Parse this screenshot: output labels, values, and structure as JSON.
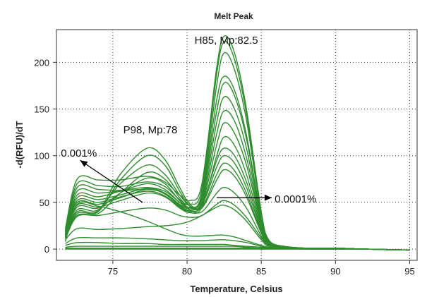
{
  "chart_data": {
    "type": "line",
    "title": "Melt Peak",
    "xlabel": "Temperature, Celsius",
    "ylabel": "-d(RFU)/dT",
    "xlim": [
      71.2,
      95.5
    ],
    "ylim": [
      -12,
      235
    ],
    "x_ticks": [
      75,
      80,
      85,
      90,
      95
    ],
    "y_ticks": [
      0,
      50,
      100,
      150,
      200
    ],
    "grid": "dotted",
    "line_color": "#2e8b2e",
    "annotations": [
      {
        "text": "H85, Mp:82.5",
        "x": 80.5,
        "y": 220
      },
      {
        "text": "P98, Mp:78",
        "x": 75.7,
        "y": 124
      },
      {
        "text": "0.001%",
        "x": 71.5,
        "y": 99
      },
      {
        "text": "0.0001%",
        "x": 85.9,
        "y": 50
      }
    ],
    "arrows": [
      {
        "from": [
          77.0,
          50.0
        ],
        "to": [
          72.8,
          95.0
        ]
      },
      {
        "from": [
          82.0,
          55.0
        ],
        "to": [
          85.7,
          55.0
        ]
      }
    ],
    "series": [
      {
        "x": [
          71.8,
          72.6,
          74.0,
          75.5,
          77.3,
          78.5,
          79.5,
          80.2,
          81.0,
          82.0,
          82.5,
          83.2,
          84.0,
          85.0,
          85.5,
          86.5,
          88.0,
          90.0,
          92.0,
          95.0
        ],
        "y": [
          22,
          75,
          74,
          74,
          78,
          72,
          58,
          52,
          70,
          195,
          228,
          210,
          150,
          40,
          10,
          3,
          1,
          1,
          0,
          -1
        ]
      },
      {
        "x": [
          71.8,
          72.6,
          74.0,
          75.5,
          77.3,
          78.5,
          79.5,
          80.2,
          81.0,
          82.0,
          82.5,
          83.2,
          84.0,
          85.0,
          85.5,
          86.5,
          88.0,
          90.0,
          92.0,
          95.0
        ],
        "y": [
          20,
          70,
          68,
          67,
          72,
          67,
          53,
          48,
          65,
          188,
          222,
          203,
          145,
          38,
          9,
          3,
          1,
          1,
          0,
          -1
        ]
      },
      {
        "x": [
          71.8,
          72.6,
          74.0,
          75.5,
          77.3,
          78.5,
          79.5,
          80.2,
          81.0,
          82.0,
          82.5,
          83.2,
          84.0,
          85.0,
          85.5,
          86.5,
          88.0,
          90.0,
          92.0,
          95.0
        ],
        "y": [
          19,
          66,
          64,
          63,
          66,
          62,
          50,
          45,
          60,
          176,
          210,
          192,
          138,
          36,
          8,
          3,
          1,
          1,
          0,
          -1
        ]
      },
      {
        "x": [
          71.8,
          72.6,
          74.0,
          75.5,
          77.3,
          78.5,
          79.5,
          80.2,
          81.0,
          82.0,
          82.5,
          83.2,
          84.0,
          85.0,
          85.5,
          86.5,
          88.0,
          90.0,
          92.0,
          95.0
        ],
        "y": [
          18,
          62,
          60,
          62,
          64,
          60,
          48,
          44,
          58,
          160,
          185,
          170,
          122,
          33,
          8,
          3,
          1,
          1,
          0,
          -1
        ]
      },
      {
        "x": [
          71.8,
          72.6,
          74.0,
          75.5,
          77.3,
          78.5,
          79.5,
          80.2,
          81.0,
          82.0,
          82.5,
          83.2,
          84.0,
          85.0,
          85.5,
          86.5,
          88.0,
          90.0,
          92.0,
          95.0
        ],
        "y": [
          17,
          58,
          56,
          62,
          70,
          64,
          50,
          44,
          56,
          148,
          178,
          164,
          118,
          32,
          8,
          3,
          1,
          1,
          0,
          -1
        ]
      },
      {
        "x": [
          71.8,
          72.6,
          74.0,
          75.5,
          77.3,
          78.5,
          79.5,
          80.2,
          81.0,
          82.0,
          82.5,
          83.2,
          84.0,
          85.0,
          85.5,
          86.5,
          88.0,
          90.0,
          92.0,
          95.0
        ],
        "y": [
          16,
          55,
          53,
          58,
          65,
          60,
          47,
          42,
          53,
          136,
          163,
          150,
          108,
          30,
          7,
          3,
          1,
          1,
          0,
          -1
        ]
      },
      {
        "x": [
          71.8,
          72.6,
          74.0,
          75.5,
          77.3,
          78.5,
          79.5,
          80.2,
          81.0,
          82.0,
          82.5,
          83.2,
          84.0,
          85.0,
          85.5,
          86.5,
          88.0,
          90.0,
          92.0,
          95.0
        ],
        "y": [
          15,
          52,
          50,
          56,
          62,
          57,
          45,
          40,
          50,
          124,
          148,
          137,
          98,
          28,
          7,
          2,
          1,
          1,
          0,
          -1
        ]
      },
      {
        "x": [
          71.8,
          72.6,
          74.0,
          75.5,
          77.3,
          78.5,
          79.5,
          80.2,
          81.0,
          82.0,
          82.5,
          83.2,
          84.0,
          85.0,
          85.5,
          86.5,
          88.0,
          90.0,
          92.0,
          95.0
        ],
        "y": [
          15,
          50,
          48,
          55,
          64,
          59,
          46,
          41,
          48,
          112,
          135,
          124,
          90,
          26,
          6,
          2,
          1,
          1,
          0,
          -1
        ]
      },
      {
        "x": [
          71.8,
          72.6,
          74.0,
          75.5,
          77.3,
          78.5,
          79.5,
          80.2,
          81.0,
          82.0,
          82.5,
          83.2,
          84.0,
          85.0,
          85.5,
          86.5,
          88.0,
          90.0,
          92.0,
          95.0
        ],
        "y": [
          14,
          47,
          45,
          52,
          60,
          56,
          44,
          39,
          45,
          100,
          120,
          111,
          80,
          24,
          6,
          2,
          1,
          1,
          0,
          -1
        ]
      },
      {
        "x": [
          71.8,
          72.6,
          74.0,
          75.5,
          77.3,
          78.5,
          79.5,
          80.2,
          81.0,
          82.0,
          82.5,
          83.2,
          84.0,
          85.0,
          85.5,
          86.5,
          88.0,
          90.0,
          92.0,
          95.0
        ],
        "y": [
          14,
          45,
          44,
          60,
          76,
          70,
          52,
          44,
          48,
          95,
          108,
          100,
          72,
          22,
          6,
          2,
          1,
          1,
          0,
          -1
        ]
      },
      {
        "x": [
          71.8,
          72.6,
          74.0,
          75.5,
          77.3,
          78.5,
          79.5,
          80.2,
          81.0,
          82.0,
          82.5,
          83.2,
          84.0,
          85.0,
          85.5,
          86.5,
          88.0,
          90.0,
          92.0,
          95.0
        ],
        "y": [
          13,
          42,
          42,
          70,
          90,
          80,
          58,
          46,
          47,
          88,
          100,
          92,
          66,
          20,
          5,
          2,
          1,
          1,
          0,
          -1
        ]
      },
      {
        "x": [
          71.8,
          72.6,
          74.0,
          75.5,
          77.3,
          78.5,
          79.5,
          80.2,
          81.0,
          82.0,
          82.5,
          83.2,
          84.0,
          85.0,
          85.5,
          86.5,
          88.0,
          90.0,
          92.0,
          95.0
        ],
        "y": [
          13,
          40,
          41,
          80,
          108,
          96,
          66,
          48,
          45,
          80,
          92,
          84,
          60,
          18,
          5,
          2,
          1,
          1,
          0,
          -1
        ]
      },
      {
        "x": [
          71.8,
          72.6,
          74.0,
          75.5,
          77.3,
          78.5,
          79.5,
          80.2,
          81.0,
          82.0,
          82.5,
          83.2,
          84.0,
          85.0,
          85.5,
          86.5,
          88.0,
          90.0,
          92.0,
          95.0
        ],
        "y": [
          12,
          38,
          40,
          74,
          100,
          90,
          62,
          46,
          44,
          74,
          85,
          78,
          56,
          17,
          5,
          2,
          1,
          1,
          0,
          -1
        ]
      },
      {
        "x": [
          71.8,
          72.6,
          74.0,
          75.5,
          77.3,
          78.5,
          79.5,
          80.2,
          81.0,
          82.0,
          82.5,
          83.2,
          84.0,
          85.0,
          85.5,
          86.5,
          88.0,
          90.0,
          92.0,
          95.0
        ],
        "y": [
          12,
          36,
          38,
          60,
          82,
          75,
          55,
          42,
          40,
          60,
          66,
          60,
          44,
          14,
          4,
          2,
          1,
          1,
          0,
          -1
        ]
      },
      {
        "x": [
          71.8,
          72.6,
          74.0,
          75.5,
          77.3,
          78.5,
          79.5,
          80.2,
          81.0,
          82.0,
          82.5,
          83.2,
          84.0,
          85.0,
          85.5,
          86.5,
          88.0,
          90.0,
          92.0,
          95.0
        ],
        "y": [
          11,
          35,
          36,
          40,
          44,
          42,
          36,
          34,
          36,
          48,
          52,
          47,
          34,
          12,
          4,
          2,
          1,
          1,
          0,
          -1
        ]
      },
      {
        "x": [
          71.8,
          72.6,
          74.0,
          75.5,
          77.3,
          78.5,
          79.5,
          80.2,
          81.0,
          82.0,
          82.5,
          83.2,
          84.0,
          85.0,
          85.5,
          86.5,
          88.0,
          90.0,
          92.0,
          95.0
        ],
        "y": [
          10,
          22,
          21,
          22,
          24,
          25,
          27,
          30,
          36,
          45,
          47,
          42,
          30,
          10,
          3,
          2,
          1,
          1,
          0,
          -1
        ]
      },
      {
        "x": [
          71.8,
          72.6,
          74.0,
          75.5,
          77.3,
          78.5,
          79.5,
          80.2,
          81.0,
          82.0,
          82.5,
          83.2,
          84.0,
          85.0,
          85.5,
          86.5,
          88.0,
          90.0,
          92.0,
          95.0
        ],
        "y": [
          8,
          48,
          46,
          40,
          30,
          22,
          16,
          14,
          14,
          15,
          15,
          13,
          9,
          4,
          2,
          1,
          1,
          1,
          0,
          -1
        ]
      },
      {
        "x": [
          71.8,
          72.6,
          74.0,
          75.5,
          77.3,
          78.5,
          79.5,
          80.2,
          81.0,
          82.0,
          82.5,
          83.2,
          84.0,
          85.0,
          85.5,
          86.5,
          88.0,
          90.0,
          92.0,
          95.0
        ],
        "y": [
          6,
          12,
          12,
          12,
          11,
          10,
          9,
          9,
          9,
          10,
          10,
          9,
          7,
          3,
          1,
          1,
          1,
          0,
          0,
          -1
        ]
      },
      {
        "x": [
          71.8,
          72.6,
          74.0,
          75.5,
          77.3,
          78.5,
          79.5,
          80.2,
          81.0,
          82.0,
          82.5,
          83.2,
          84.0,
          85.0,
          85.5,
          86.5,
          88.0,
          90.0,
          92.0,
          95.0
        ],
        "y": [
          4,
          7,
          7,
          6,
          6,
          5,
          5,
          5,
          5,
          5,
          5,
          4,
          3,
          2,
          1,
          1,
          0,
          0,
          0,
          -1
        ]
      },
      {
        "x": [
          71.8,
          72.6,
          74.0,
          75.5,
          77.3,
          78.5,
          79.5,
          80.2,
          81.0,
          82.0,
          82.5,
          83.2,
          84.0,
          85.0,
          85.5,
          86.5,
          88.0,
          90.0,
          92.0,
          95.0
        ],
        "y": [
          2,
          3,
          3,
          3,
          3,
          3,
          3,
          3,
          3,
          3,
          3,
          3,
          2,
          1,
          1,
          1,
          0,
          0,
          0,
          -1
        ]
      },
      {
        "x": [
          71.8,
          72.6,
          74.0,
          75.5,
          77.3,
          78.5,
          79.5,
          80.2,
          81.0,
          82.0,
          82.5,
          83.2,
          84.0,
          85.0,
          85.5,
          86.5,
          88.0,
          90.0,
          92.0,
          95.0
        ],
        "y": [
          1,
          1,
          1,
          1,
          1,
          1,
          1,
          1,
          1,
          1,
          1,
          1,
          1,
          0,
          0,
          0,
          0,
          0,
          0,
          -1
        ]
      },
      {
        "x": [
          71.8,
          72.6,
          74.0,
          75.5,
          77.3,
          78.5,
          79.5,
          80.2,
          81.0,
          82.0,
          82.5,
          83.2,
          84.0,
          85.0,
          85.5,
          86.5,
          88.0,
          90.0,
          92.0,
          95.0
        ],
        "y": [
          0,
          0,
          0,
          0,
          0,
          0,
          0,
          0,
          0,
          0,
          0,
          0,
          0,
          0,
          0,
          0,
          0,
          0,
          0,
          -1
        ]
      }
    ]
  }
}
